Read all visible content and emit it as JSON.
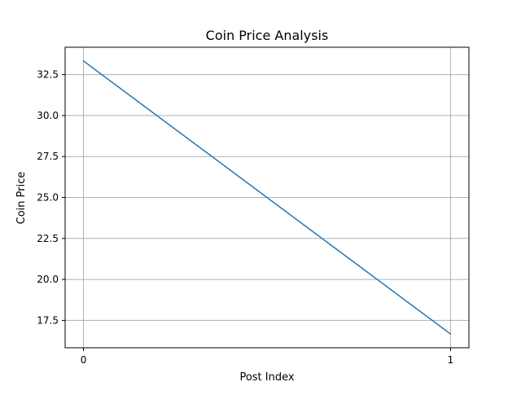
{
  "chart_data": {
    "type": "line",
    "title": "Coin Price Analysis",
    "xlabel": "Post Index",
    "ylabel": "Coin Price",
    "x": [
      0,
      1
    ],
    "series": [
      {
        "values": [
          33.33,
          16.67
        ],
        "color": "#1f77b4"
      }
    ],
    "xlim": [
      -0.05,
      1.05
    ],
    "ylim": [
      15.83,
      34.17
    ],
    "xticks": [
      0,
      1
    ],
    "xtick_labels": [
      "0",
      "1"
    ],
    "yticks": [
      17.5,
      20.0,
      22.5,
      25.0,
      27.5,
      30.0,
      32.5
    ],
    "ytick_labels": [
      "17.5",
      "20.0",
      "22.5",
      "25.0",
      "27.5",
      "30.0",
      "32.5"
    ],
    "grid": true,
    "grid_color": "#b0b0b0",
    "legend": "none"
  }
}
